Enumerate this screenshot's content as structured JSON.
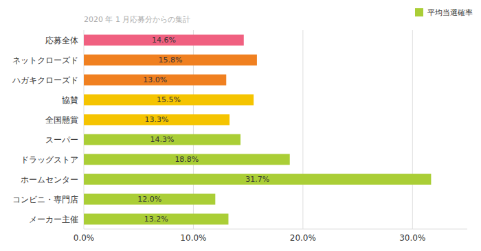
{
  "chart_data": {
    "type": "bar",
    "orientation": "horizontal",
    "subtitle": "2020 年 1 月応募分からの集計",
    "categories": [
      "メーカー主催",
      "コンビニ・専門店",
      "ホームセンター",
      "ドラッグストア",
      "スーパー",
      "全国懸賞",
      "協賛",
      "ハガキクローズド",
      "ネットクローズド",
      "応募全体"
    ],
    "series": [
      {
        "name": "平均当選確率",
        "color": "#aace36",
        "colors": [
          "#aace36",
          "#aace36",
          "#aace36",
          "#aace36",
          "#aace36",
          "#f5c400",
          "#f5c400",
          "#f08020",
          "#f08020",
          "#f06080"
        ],
        "values": [
          13.2,
          12.0,
          31.7,
          18.8,
          14.3,
          13.3,
          15.5,
          13.0,
          15.8,
          14.6
        ],
        "value_labels": [
          "13.2%",
          "12.0%",
          "31.7%",
          "18.8%",
          "14.3%",
          "13.3%",
          "15.5%",
          "13.0%",
          "15.8%",
          "14.6%"
        ]
      }
    ],
    "xlim": [
      0,
      35
    ],
    "xticks": [
      {
        "value": 0,
        "label": "0.0%"
      },
      {
        "value": 10,
        "label": "10.0%"
      },
      {
        "value": 20,
        "label": "20.0%"
      },
      {
        "value": 30,
        "label": "30.0%"
      }
    ],
    "grid": true,
    "data_labels": true,
    "legend": "upper right"
  }
}
